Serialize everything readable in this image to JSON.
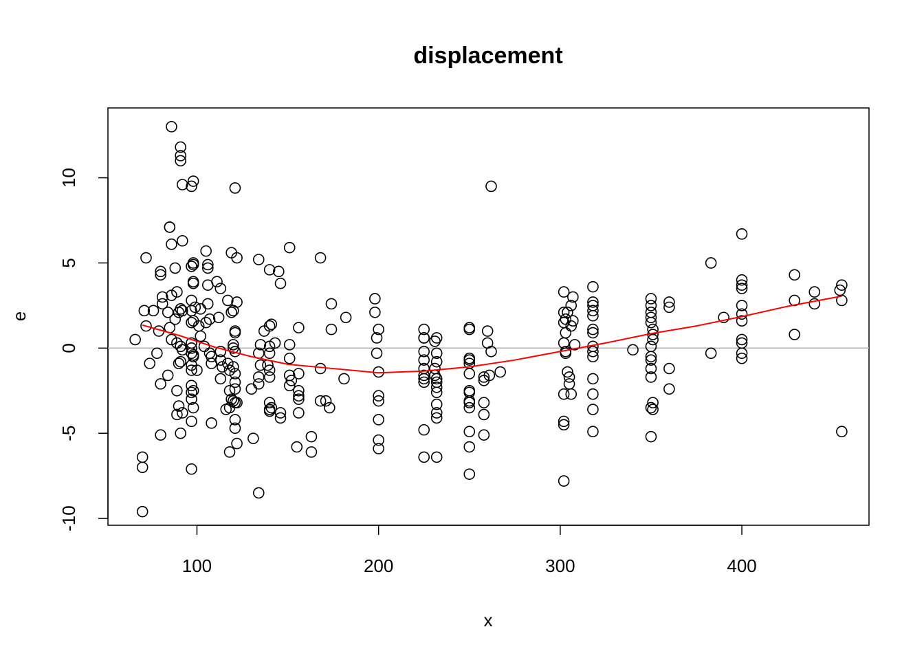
{
  "chart_data": {
    "type": "scatter",
    "title": "displacement",
    "xlabel": "x",
    "ylabel": "e",
    "xlim": [
      51,
      470
    ],
    "ylim": [
      -10.4,
      14.1
    ],
    "x_ticks": [
      100,
      200,
      300,
      400
    ],
    "y_ticks": [
      -10,
      -5,
      0,
      5,
      10
    ],
    "grid": false,
    "legend": "none",
    "reference_line": {
      "y": 0,
      "color": "#b3b3b3"
    },
    "colors": {
      "points": "#000000",
      "smooth": "#ff0000",
      "reference": "#b3b3b3",
      "frame": "#000000"
    },
    "points": [
      [
        86,
        13.0
      ],
      [
        91,
        11.8
      ],
      [
        91,
        11.3
      ],
      [
        91,
        11.0
      ],
      [
        98,
        9.8
      ],
      [
        97,
        9.5
      ],
      [
        92,
        9.6
      ],
      [
        121,
        9.4
      ],
      [
        262,
        9.5
      ],
      [
        400,
        6.7
      ],
      [
        85,
        7.1
      ],
      [
        85,
        7.1
      ],
      [
        86,
        6.1
      ],
      [
        92,
        6.3
      ],
      [
        105,
        5.7
      ],
      [
        151,
        5.9
      ],
      [
        168,
        5.3
      ],
      [
        72,
        5.3
      ],
      [
        119,
        5.6
      ],
      [
        122,
        5.3
      ],
      [
        134,
        5.2
      ],
      [
        88,
        4.7
      ],
      [
        80,
        4.5
      ],
      [
        80,
        4.3
      ],
      [
        98,
        5.0
      ],
      [
        97,
        4.8
      ],
      [
        98,
        4.9
      ],
      [
        106,
        4.9
      ],
      [
        106,
        4.7
      ],
      [
        140,
        4.6
      ],
      [
        145,
        4.5
      ],
      [
        383,
        5.0
      ],
      [
        98,
        3.8
      ],
      [
        98,
        3.9
      ],
      [
        106,
        3.7
      ],
      [
        111,
        3.9
      ],
      [
        113,
        3.5
      ],
      [
        146,
        3.8
      ],
      [
        400,
        4.0
      ],
      [
        400,
        3.7
      ],
      [
        400,
        3.5
      ],
      [
        429,
        4.3
      ],
      [
        440,
        3.3
      ],
      [
        454,
        3.4
      ],
      [
        455,
        3.7
      ],
      [
        318,
        3.6
      ],
      [
        302,
        3.3
      ],
      [
        307,
        3.0
      ],
      [
        89,
        3.3
      ],
      [
        86,
        3.1
      ],
      [
        97,
        2.8
      ],
      [
        81,
        3.0
      ],
      [
        81,
        2.6
      ],
      [
        91,
        2.3
      ],
      [
        90,
        2.1
      ],
      [
        92,
        2.2
      ],
      [
        97,
        2.2
      ],
      [
        99,
        2.4
      ],
      [
        106,
        2.6
      ],
      [
        102,
        2.3
      ],
      [
        112,
        1.8
      ],
      [
        117,
        2.8
      ],
      [
        120,
        2.2
      ],
      [
        119,
        2.1
      ],
      [
        122,
        2.7
      ],
      [
        174,
        2.6
      ],
      [
        198,
        2.9
      ],
      [
        198,
        2.1
      ],
      [
        182,
        1.8
      ],
      [
        71,
        2.2
      ],
      [
        76,
        2.2
      ],
      [
        84,
        2.1
      ],
      [
        88,
        1.7
      ],
      [
        97,
        1.5
      ],
      [
        98,
        1.6
      ],
      [
        105,
        1.5
      ],
      [
        107,
        1.7
      ],
      [
        101,
        1.3
      ],
      [
        121,
        1.0
      ],
      [
        121,
        0.9
      ],
      [
        137,
        1.0
      ],
      [
        140,
        1.3
      ],
      [
        141,
        1.4
      ],
      [
        156,
        1.2
      ],
      [
        174,
        1.1
      ],
      [
        200,
        1.1
      ],
      [
        225,
        1.1
      ],
      [
        250,
        1.1
      ],
      [
        250,
        1.2
      ],
      [
        260,
        1.0
      ],
      [
        302,
        2.1
      ],
      [
        303,
        1.7
      ],
      [
        304,
        2.1
      ],
      [
        306,
        2.5
      ],
      [
        318,
        2.7
      ],
      [
        318,
        2.5
      ],
      [
        318,
        2.2
      ],
      [
        318,
        1.9
      ],
      [
        318,
        1.1
      ],
      [
        318,
        0.9
      ],
      [
        350,
        2.9
      ],
      [
        350,
        2.5
      ],
      [
        350,
        2.1
      ],
      [
        350,
        1.8
      ],
      [
        350,
        1.5
      ],
      [
        351,
        1.1
      ],
      [
        351,
        0.8
      ],
      [
        351,
        0.5
      ],
      [
        360,
        2.7
      ],
      [
        360,
        2.4
      ],
      [
        390,
        1.8
      ],
      [
        400,
        2.5
      ],
      [
        400,
        2.0
      ],
      [
        400,
        1.6
      ],
      [
        400,
        0.5
      ],
      [
        400,
        0.3
      ],
      [
        429,
        2.8
      ],
      [
        429,
        0.8
      ],
      [
        440,
        2.6
      ],
      [
        455,
        2.8
      ],
      [
        302,
        1.5
      ],
      [
        303,
        0.9
      ],
      [
        306,
        1.3
      ],
      [
        307,
        1.6
      ],
      [
        308,
        0.2
      ],
      [
        66,
        0.5
      ],
      [
        72,
        1.3
      ],
      [
        79,
        1.0
      ],
      [
        85,
        1.2
      ],
      [
        86,
        0.5
      ],
      [
        89,
        0.3
      ],
      [
        91,
        0.1
      ],
      [
        92,
        -0.1
      ],
      [
        97,
        0.3
      ],
      [
        97,
        0.0
      ],
      [
        97,
        -0.3
      ],
      [
        98,
        -0.4
      ],
      [
        98,
        -0.5
      ],
      [
        102,
        0.7
      ],
      [
        104,
        0.1
      ],
      [
        107,
        -0.3
      ],
      [
        108,
        -0.5
      ],
      [
        113,
        -0.2
      ],
      [
        120,
        0.2
      ],
      [
        120,
        0.0
      ],
      [
        121,
        -0.2
      ],
      [
        134,
        -0.3
      ],
      [
        135,
        0.2
      ],
      [
        140,
        0.1
      ],
      [
        140,
        -0.3
      ],
      [
        143,
        0.3
      ],
      [
        151,
        0.2
      ],
      [
        151,
        -0.6
      ],
      [
        199,
        0.6
      ],
      [
        199,
        -0.3
      ],
      [
        225,
        0.6
      ],
      [
        225,
        0.6
      ],
      [
        231,
        0.4
      ],
      [
        232,
        0.6
      ],
      [
        225,
        -0.2
      ],
      [
        225,
        -0.7
      ],
      [
        232,
        -0.3
      ],
      [
        232,
        -0.8
      ],
      [
        250,
        -0.6
      ],
      [
        250,
        -0.7
      ],
      [
        250,
        -0.9
      ],
      [
        260,
        0.3
      ],
      [
        262,
        -0.2
      ],
      [
        302,
        0.3
      ],
      [
        303,
        -0.2
      ],
      [
        303,
        -0.3
      ],
      [
        318,
        0.1
      ],
      [
        318,
        -0.2
      ],
      [
        318,
        -0.5
      ],
      [
        340,
        -0.1
      ],
      [
        350,
        0.1
      ],
      [
        350,
        -0.5
      ],
      [
        350,
        -0.7
      ],
      [
        383,
        -0.3
      ],
      [
        400,
        -0.3
      ],
      [
        400,
        -0.6
      ],
      [
        78,
        -0.3
      ],
      [
        74,
        -0.9
      ],
      [
        84,
        -1.6
      ],
      [
        80,
        -2.1
      ],
      [
        90,
        -0.9
      ],
      [
        91,
        -0.8
      ],
      [
        97,
        -1.0
      ],
      [
        97,
        -1.3
      ],
      [
        100,
        -1.3
      ],
      [
        108,
        -0.9
      ],
      [
        113,
        -0.7
      ],
      [
        114,
        -1.1
      ],
      [
        113,
        -1.8
      ],
      [
        117,
        -0.9
      ],
      [
        120,
        -1.1
      ],
      [
        121,
        -1.5
      ],
      [
        121,
        -2.0
      ],
      [
        121,
        -2.4
      ],
      [
        118,
        -1.3
      ],
      [
        135,
        -1.0
      ],
      [
        134,
        -1.7
      ],
      [
        134,
        -2.1
      ],
      [
        140,
        -1.3
      ],
      [
        140,
        -1.7
      ],
      [
        139,
        -1.0
      ],
      [
        151,
        -1.6
      ],
      [
        152,
        -1.9
      ],
      [
        151,
        -2.2
      ],
      [
        156,
        -1.5
      ],
      [
        156,
        -2.5
      ],
      [
        168,
        -1.2
      ],
      [
        181,
        -1.8
      ],
      [
        200,
        -1.4
      ],
      [
        200,
        -2.8
      ],
      [
        200,
        -3.1
      ],
      [
        225,
        -1.2
      ],
      [
        225,
        -1.6
      ],
      [
        225,
        -1.8
      ],
      [
        225,
        -2.0
      ],
      [
        231,
        -1.2
      ],
      [
        231,
        -1.6
      ],
      [
        232,
        -1.8
      ],
      [
        232,
        -2.0
      ],
      [
        232,
        -2.3
      ],
      [
        232,
        -2.6
      ],
      [
        250,
        -1.5
      ],
      [
        250,
        -2.5
      ],
      [
        250,
        -2.6
      ],
      [
        250,
        -3.1
      ],
      [
        250,
        -3.2
      ],
      [
        258,
        -1.7
      ],
      [
        258,
        -1.9
      ],
      [
        261,
        -1.6
      ],
      [
        267,
        -1.4
      ],
      [
        304,
        -1.4
      ],
      [
        305,
        -1.7
      ],
      [
        305,
        -2.1
      ],
      [
        302,
        -2.7
      ],
      [
        306,
        -2.7
      ],
      [
        318,
        -1.8
      ],
      [
        318,
        -2.7
      ],
      [
        350,
        -1.2
      ],
      [
        350,
        -1.7
      ],
      [
        360,
        -1.2
      ],
      [
        360,
        -2.4
      ],
      [
        89,
        -2.5
      ],
      [
        97,
        -2.2
      ],
      [
        97,
        -2.6
      ],
      [
        98,
        -2.5
      ],
      [
        97,
        -3.0
      ],
      [
        98,
        -3.5
      ],
      [
        90,
        -3.4
      ],
      [
        89,
        -3.9
      ],
      [
        92,
        -3.8
      ],
      [
        97,
        -4.3
      ],
      [
        108,
        -4.4
      ],
      [
        116,
        -3.6
      ],
      [
        118,
        -3.5
      ],
      [
        120,
        -3.1
      ],
      [
        121,
        -3.2
      ],
      [
        118,
        -2.5
      ],
      [
        119,
        -3.0
      ],
      [
        122,
        -3.2
      ],
      [
        130,
        -2.4
      ],
      [
        140,
        -3.2
      ],
      [
        140,
        -3.6
      ],
      [
        140,
        -3.7
      ],
      [
        141,
        -3.5
      ],
      [
        146,
        -3.8
      ],
      [
        146,
        -4.1
      ],
      [
        156,
        -2.8
      ],
      [
        156,
        -3.0
      ],
      [
        156,
        -3.8
      ],
      [
        168,
        -3.1
      ],
      [
        171,
        -3.1
      ],
      [
        173,
        -3.5
      ],
      [
        200,
        -4.2
      ],
      [
        225,
        -4.8
      ],
      [
        232,
        -3.3
      ],
      [
        232,
        -3.8
      ],
      [
        232,
        -4.1
      ],
      [
        250,
        -3.5
      ],
      [
        250,
        -4.9
      ],
      [
        258,
        -3.2
      ],
      [
        258,
        -3.9
      ],
      [
        302,
        -4.3
      ],
      [
        302,
        -4.5
      ],
      [
        318,
        -3.6
      ],
      [
        318,
        -4.9
      ],
      [
        350,
        -3.5
      ],
      [
        351,
        -3.2
      ],
      [
        351,
        -3.6
      ],
      [
        350,
        -5.2
      ],
      [
        455,
        -4.9
      ],
      [
        80,
        -5.1
      ],
      [
        91,
        -5.0
      ],
      [
        121,
        -4.7
      ],
      [
        121,
        -4.2
      ],
      [
        122,
        -5.6
      ],
      [
        118,
        -6.1
      ],
      [
        131,
        -5.3
      ],
      [
        155,
        -5.8
      ],
      [
        163,
        -5.2
      ],
      [
        163,
        -6.1
      ],
      [
        200,
        -5.4
      ],
      [
        200,
        -5.9
      ],
      [
        225,
        -6.4
      ],
      [
        232,
        -6.4
      ],
      [
        250,
        -5.8
      ],
      [
        250,
        -7.4
      ],
      [
        258,
        -5.1
      ],
      [
        302,
        -7.8
      ],
      [
        70,
        -6.4
      ],
      [
        70,
        -7.0
      ],
      [
        97,
        -7.1
      ],
      [
        134,
        -8.5
      ],
      [
        70,
        -9.6
      ]
    ],
    "smooth_line": [
      [
        70,
        1.35
      ],
      [
        90,
        0.75
      ],
      [
        110,
        0.05
      ],
      [
        130,
        -0.5
      ],
      [
        150,
        -0.95
      ],
      [
        175,
        -1.2
      ],
      [
        200,
        -1.45
      ],
      [
        225,
        -1.35
      ],
      [
        250,
        -1.1
      ],
      [
        275,
        -0.7
      ],
      [
        300,
        -0.2
      ],
      [
        325,
        0.3
      ],
      [
        350,
        0.85
      ],
      [
        375,
        1.3
      ],
      [
        400,
        1.85
      ],
      [
        425,
        2.45
      ],
      [
        455,
        3.05
      ]
    ]
  }
}
